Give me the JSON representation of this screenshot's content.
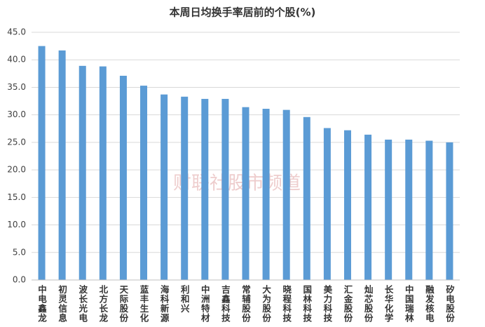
{
  "chart_data": {
    "type": "bar",
    "title": "本周日均换手率居前的个股(%)",
    "watermark": "财联社股市频道",
    "categories": [
      "中电鑫龙",
      "初灵信息",
      "波长光电",
      "北方长龙",
      "天际股份",
      "蓝丰生化",
      "海科新源",
      "利和兴",
      "中洲特材",
      "吉鑫科技",
      "常辅股份",
      "大为股份",
      "晓程科技",
      "国林科技",
      "美力科技",
      "汇金股份",
      "灿芯股份",
      "长华化学",
      "中国瑞林",
      "融发核电",
      "矽电股份"
    ],
    "values": [
      42.5,
      41.7,
      38.9,
      38.8,
      37.1,
      35.3,
      33.7,
      33.3,
      32.9,
      32.9,
      31.4,
      31.1,
      30.9,
      29.6,
      27.6,
      27.2,
      26.4,
      25.5,
      25.5,
      25.3,
      25.0
    ],
    "color": "#5b9bd5",
    "ylim": [
      0,
      45
    ],
    "yticks": [
      {
        "value": 0,
        "label": "0.0"
      },
      {
        "value": 5,
        "label": "5.0"
      },
      {
        "value": 10,
        "label": "10.0"
      },
      {
        "value": 15,
        "label": "15.0"
      },
      {
        "value": 20,
        "label": "20.0"
      },
      {
        "value": 25,
        "label": "25.0"
      },
      {
        "value": 30,
        "label": "30.0"
      },
      {
        "value": 35,
        "label": "35.0"
      },
      {
        "value": 40,
        "label": "40.0"
      },
      {
        "value": 45,
        "label": "45.0"
      }
    ],
    "grid": true
  }
}
